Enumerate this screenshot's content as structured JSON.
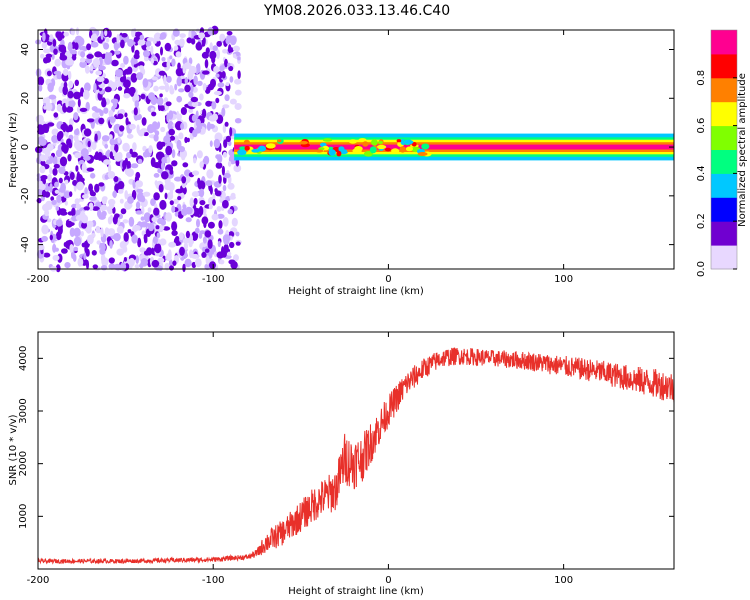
{
  "title": "YM08.2026.033.13.46.C40",
  "chart_data": [
    {
      "type": "heatmap",
      "xlabel": "Height of straight line (km)",
      "ylabel": "Frequency (Hz)",
      "xlim": [
        -200,
        163
      ],
      "ylim": [
        -50,
        48
      ],
      "xticks": [
        -200,
        -100,
        0,
        100
      ],
      "xtick_labels": [
        "-200",
        "-100",
        "0",
        "100"
      ],
      "yticks": [
        -40,
        -20,
        0,
        20,
        40
      ],
      "ytick_labels": [
        "-40",
        "-20",
        "0",
        "20",
        "40"
      ],
      "noise_region_km": [
        -200,
        -85
      ],
      "noise_level": 0.15,
      "signal_band_hz": [
        -1.5,
        1.5
      ],
      "signal_start_km": -88,
      "signal_peak_level": 0.95,
      "colorbar": {
        "label": "Normalized spectral amplitude",
        "range": [
          0,
          1
        ],
        "ticks": [
          0.0,
          0.2,
          0.4,
          0.6,
          0.8
        ],
        "tick_labels": [
          "0.0",
          "0.2",
          "0.4",
          "0.6",
          "0.8"
        ],
        "colors": [
          "#e8d8ff",
          "#7000d0",
          "#0000ff",
          "#00c8ff",
          "#00ff80",
          "#80ff00",
          "#ffff00",
          "#ff8000",
          "#ff0000",
          "#ff0090"
        ]
      }
    },
    {
      "type": "line",
      "xlabel": "Height of straight line (km)",
      "ylabel": "SNR (10 * v/v)",
      "xlim": [
        -200,
        163
      ],
      "ylim": [
        0,
        4500
      ],
      "xticks": [
        -200,
        -100,
        0,
        100
      ],
      "xtick_labels": [
        "-200",
        "-100",
        "0",
        "100"
      ],
      "yticks": [
        1000,
        2000,
        3000,
        4000
      ],
      "ytick_labels": [
        "1000",
        "2000",
        "3000",
        "4000"
      ],
      "line_color": "#e8302a",
      "series": [
        {
          "name": "SNR",
          "x": [
            -200,
            -150,
            -100,
            -80,
            -75,
            -70,
            -60,
            -50,
            -40,
            -30,
            -25,
            -20,
            -15,
            -10,
            -5,
            0,
            10,
            20,
            30,
            40,
            60,
            80,
            100,
            120,
            140,
            163
          ],
          "y": [
            150,
            150,
            180,
            230,
            300,
            500,
            700,
            1000,
            1300,
            1500,
            2100,
            2000,
            2100,
            2400,
            2700,
            3000,
            3500,
            3800,
            4000,
            4050,
            4000,
            3950,
            3850,
            3750,
            3600,
            3450
          ],
          "noise_amplitude": [
            40,
            40,
            45,
            50,
            80,
            200,
            250,
            300,
            350,
            400,
            500,
            500,
            450,
            400,
            350,
            300,
            250,
            200,
            180,
            170,
            160,
            180,
            200,
            220,
            260,
            300
          ]
        }
      ]
    }
  ]
}
